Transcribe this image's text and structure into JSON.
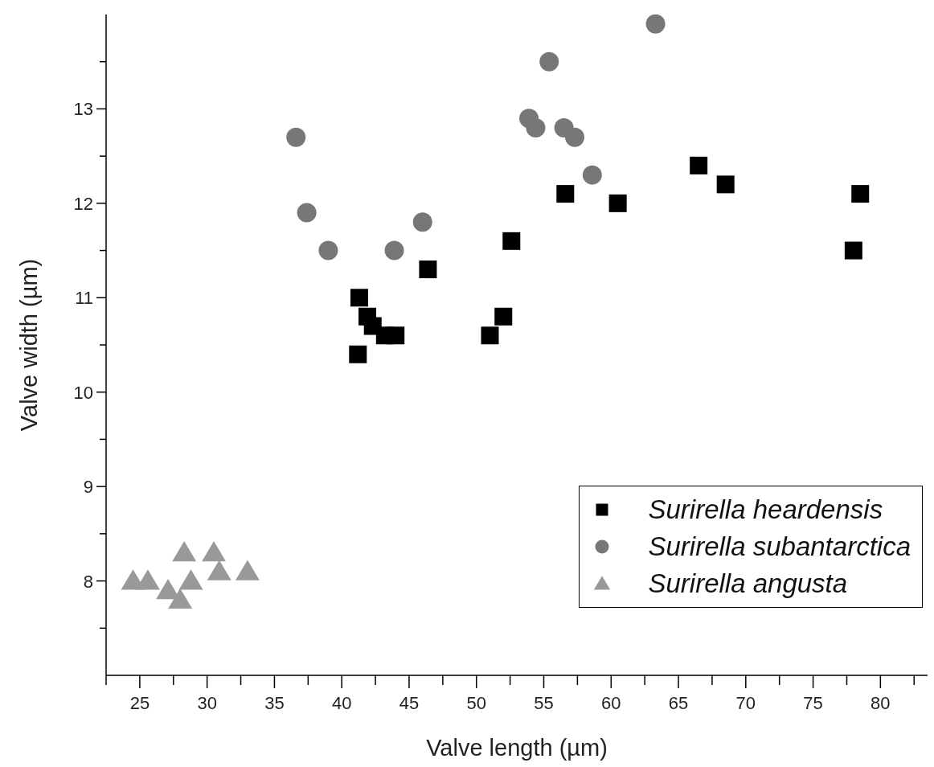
{
  "chart_data": {
    "type": "scatter",
    "xlabel": "Valve length (µm)",
    "ylabel": "Valve width (µm)",
    "xlim": [
      22.5,
      83.5
    ],
    "ylim": [
      7,
      14
    ],
    "xticks": [
      {
        "value": 22.5,
        "label": null
      },
      25,
      {
        "value": 27.5,
        "label": null
      },
      30,
      {
        "value": 32.5,
        "label": null
      },
      35,
      {
        "value": 37.5,
        "label": null
      },
      40,
      {
        "value": 42.5,
        "label": null
      },
      45,
      {
        "value": 47.5,
        "label": null
      },
      50,
      {
        "value": 52.5,
        "label": null
      },
      55,
      {
        "value": 57.5,
        "label": null
      },
      60,
      {
        "value": 62.5,
        "label": null
      },
      65,
      {
        "value": 67.5,
        "label": null
      },
      70,
      {
        "value": 72.5,
        "label": null
      },
      75,
      {
        "value": 77.5,
        "label": null
      },
      80,
      {
        "value": 82.5,
        "label": null
      }
    ],
    "yticks": [
      {
        "value": 7.5,
        "label": null
      },
      8,
      {
        "value": 8.5,
        "label": null
      },
      9,
      {
        "value": 9.5,
        "label": null
      },
      10,
      {
        "value": 10.5,
        "label": null
      },
      11,
      {
        "value": 11.5,
        "label": null
      },
      12,
      {
        "value": 12.5,
        "label": null
      },
      13,
      {
        "value": 13.5,
        "label": null
      }
    ],
    "grid": false,
    "legend": "bottom right",
    "series": [
      {
        "name": "Surirella heardensis",
        "color": "#000000",
        "marker": "square",
        "x": [
          41.3,
          41.9,
          42.3,
          43.2,
          44.0,
          41.2,
          46.4,
          51.0,
          52.0,
          52.6,
          56.6,
          60.5,
          66.5,
          68.5,
          78.0,
          78.5
        ],
        "values": [
          11.0,
          10.8,
          10.7,
          10.6,
          10.6,
          10.4,
          11.3,
          10.6,
          10.8,
          11.6,
          12.1,
          12.0,
          12.4,
          12.2,
          11.5,
          12.1
        ]
      },
      {
        "name": "Surirella subantarctica",
        "color": "#777777",
        "marker": "circle",
        "x": [
          36.6,
          37.4,
          39.0,
          43.9,
          46.0,
          53.9,
          54.4,
          55.4,
          56.5,
          57.3,
          58.6,
          63.3
        ],
        "values": [
          12.7,
          11.9,
          11.5,
          11.5,
          11.8,
          12.9,
          12.8,
          13.5,
          12.8,
          12.7,
          12.3,
          13.9
        ]
      },
      {
        "name": "Surirella angusta",
        "color": "#999999",
        "marker": "triangle",
        "x": [
          24.5,
          25.6,
          27.1,
          28.0,
          28.3,
          28.8,
          30.5,
          30.9,
          33.0
        ],
        "values": [
          8.0,
          8.0,
          7.9,
          7.8,
          8.3,
          8.0,
          8.3,
          8.1,
          8.1
        ]
      }
    ]
  }
}
